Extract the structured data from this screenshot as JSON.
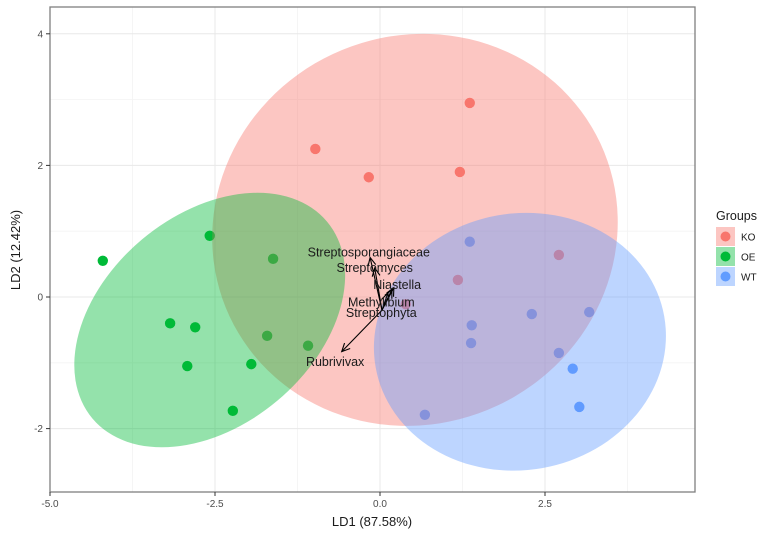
{
  "chart_data": {
    "type": "scatter",
    "title": "",
    "xlabel": "LD1 (87.58%)",
    "ylabel": "LD2 (12.42%)",
    "xlim": [
      -5.0,
      4.8
    ],
    "ylim": [
      -3.0,
      4.4
    ],
    "x_ticks": [
      -5.0,
      -2.5,
      0.0,
      2.5
    ],
    "x_tick_labels": [
      "-5.0",
      "-2.5",
      "0.0",
      "2.5"
    ],
    "y_ticks": [
      -2,
      0,
      2,
      4
    ],
    "y_tick_labels": [
      "-2",
      "0",
      "2",
      "4"
    ],
    "grid": true,
    "legend": {
      "title": "Groups",
      "position": "right",
      "entries": [
        {
          "label": "KO",
          "color": "#F8766D"
        },
        {
          "label": "OE",
          "color": "#00BA38"
        },
        {
          "label": "WT",
          "color": "#619CFF"
        }
      ]
    },
    "series": [
      {
        "name": "KO",
        "color": "#F8766D",
        "points": [
          [
            1.36,
            2.95
          ],
          [
            -0.98,
            2.25
          ],
          [
            -0.17,
            1.82
          ],
          [
            1.21,
            1.9
          ],
          [
            1.18,
            0.26
          ],
          [
            2.71,
            0.64
          ],
          [
            0.39,
            -0.11
          ]
        ],
        "ellipse": {
          "cx": 0.53,
          "cy": 1.02,
          "rx": 3.1,
          "ry": 2.95,
          "angle_deg": -25
        }
      },
      {
        "name": "OE",
        "color": "#00BA38",
        "points": [
          [
            -4.2,
            0.55
          ],
          [
            -2.58,
            0.93
          ],
          [
            -1.62,
            0.58
          ],
          [
            -3.18,
            -0.4
          ],
          [
            -2.8,
            -0.46
          ],
          [
            -1.71,
            -0.59
          ],
          [
            -2.92,
            -1.05
          ],
          [
            -1.95,
            -1.02
          ],
          [
            -2.23,
            -1.73
          ],
          [
            -1.09,
            -0.74
          ]
        ],
        "ellipse": {
          "cx": -2.58,
          "cy": -0.35,
          "rx": 2.32,
          "ry": 1.6,
          "angle_deg": -40
        }
      },
      {
        "name": "WT",
        "color": "#619CFF",
        "points": [
          [
            1.36,
            0.84
          ],
          [
            2.3,
            -0.26
          ],
          [
            1.39,
            -0.43
          ],
          [
            1.38,
            -0.7
          ],
          [
            3.17,
            -0.23
          ],
          [
            2.71,
            -0.85
          ],
          [
            2.92,
            -1.09
          ],
          [
            3.02,
            -1.67
          ],
          [
            0.68,
            -1.79
          ]
        ],
        "ellipse": {
          "cx": 2.12,
          "cy": -0.68,
          "rx": 2.22,
          "ry": 1.95,
          "angle_deg": -10
        }
      }
    ],
    "biplot_arrows": {
      "origin": [
        0.03,
        -0.2
      ],
      "color": "#000000",
      "vectors": [
        {
          "label": "Streptosporangiaceae",
          "end": [
            -0.15,
            0.6
          ],
          "label_pos": [
            -0.17,
            0.68
          ]
        },
        {
          "label": "Streptomyces",
          "end": [
            -0.08,
            0.44
          ],
          "label_pos": [
            -0.08,
            0.44
          ]
        },
        {
          "label": "Niastella",
          "end": [
            0.21,
            0.14
          ],
          "label_pos": [
            0.26,
            0.18
          ]
        },
        {
          "label": "Methylibium",
          "end": [
            0.18,
            0.11
          ],
          "label_pos": [
            0.02,
            -0.08
          ]
        },
        {
          "label": "Streptophyta",
          "end": [
            0.12,
            0.06
          ],
          "label_pos": [
            0.02,
            -0.24
          ]
        },
        {
          "label": "Rubrivivax",
          "end": [
            -0.58,
            -0.83
          ],
          "label_pos": [
            -0.68,
            -0.99
          ]
        }
      ]
    }
  },
  "colors": {
    "KO": "#F8766D",
    "OE": "#00BA38",
    "WT": "#619CFF",
    "panel_border": "#7f7f7f",
    "grid": "#ebebeb"
  }
}
